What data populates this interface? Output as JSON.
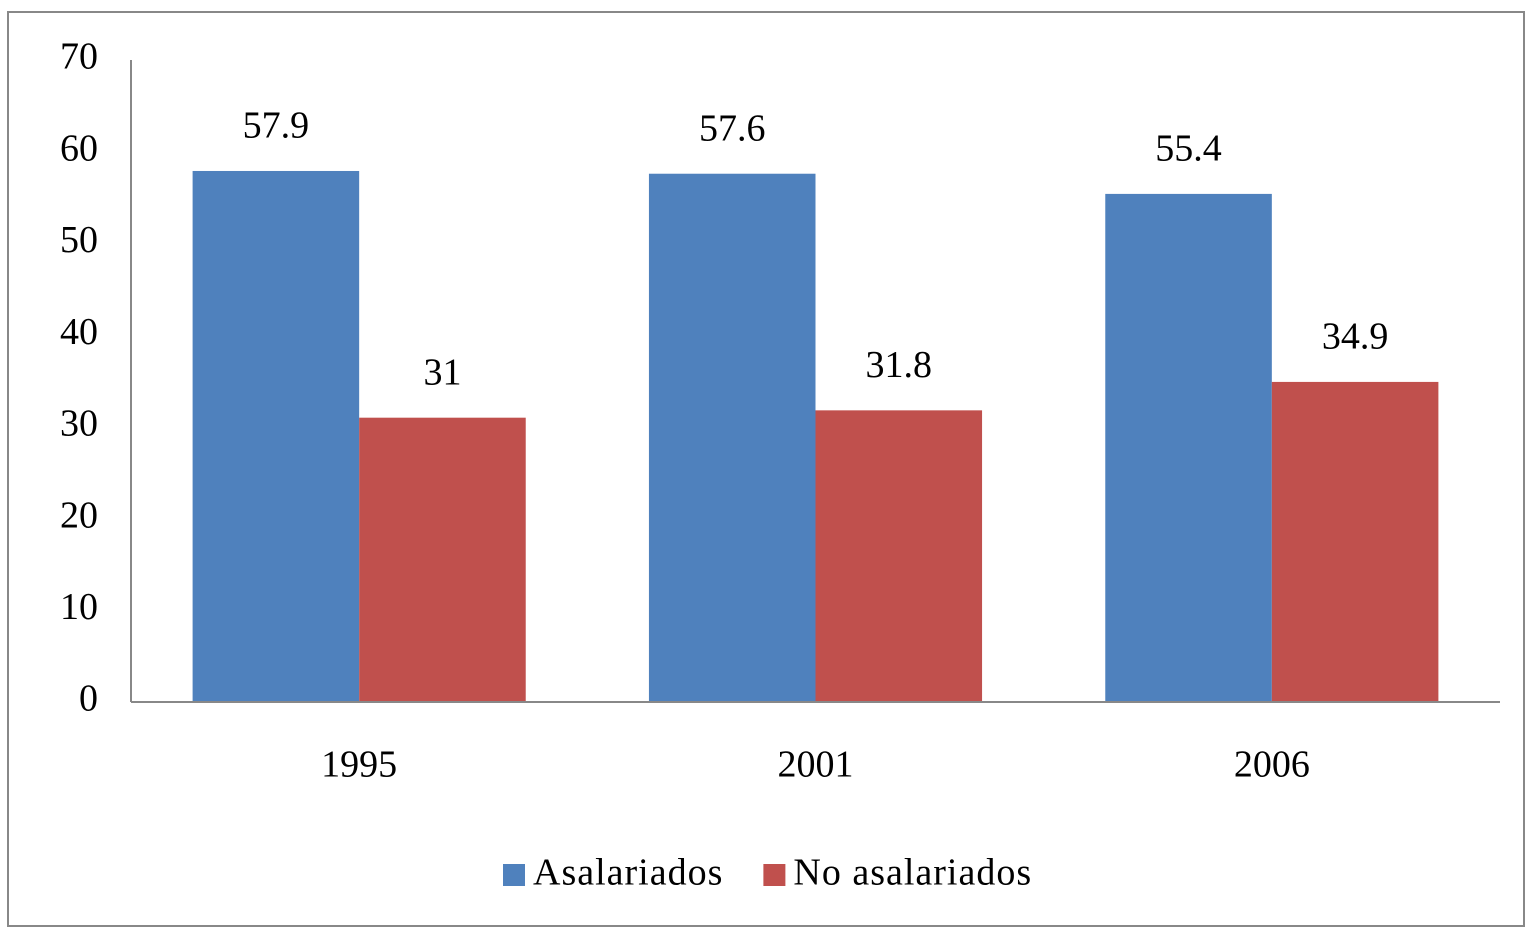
{
  "chart_data": {
    "type": "bar",
    "categories": [
      "1995",
      "2001",
      "2006"
    ],
    "series": [
      {
        "name": "Asalariados",
        "color": "#4f81bd",
        "values": [
          57.9,
          57.6,
          55.4
        ]
      },
      {
        "name": "No asalariados",
        "color": "#c0504d",
        "values": [
          31,
          31.8,
          34.9
        ]
      }
    ],
    "ylim": [
      0,
      70
    ],
    "yticks": [
      0,
      10,
      20,
      30,
      40,
      50,
      60,
      70
    ],
    "grid": false,
    "legend": "bottom"
  }
}
